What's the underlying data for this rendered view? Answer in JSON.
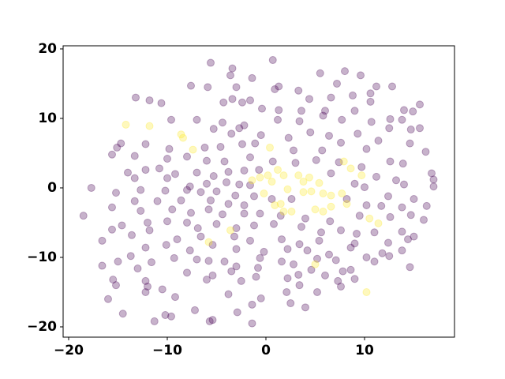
{
  "chart_data": {
    "type": "scatter",
    "xlim": [
      -20.56,
      19.12
    ],
    "ylim": [
      -21.48,
      20.45
    ],
    "xticks": [
      {
        "value": -20,
        "label": "−20"
      },
      {
        "value": -10,
        "label": "−10"
      },
      0,
      10
    ],
    "yticks": [
      {
        "value": -20,
        "label": "−20"
      },
      {
        "value": -10,
        "label": "−10"
      },
      0,
      10,
      20
    ],
    "alpha": 0.3,
    "series": [
      {
        "color": "#440154",
        "x": [
          -5.6,
          -3.4,
          0.7,
          -1.4,
          -3.6,
          5.5,
          8.0,
          9.6,
          -7.6,
          -5.9,
          -3.0,
          1.3,
          0.9,
          3.3,
          7.2,
          11.2,
          12.8,
          10.6,
          -13.2,
          -11.8,
          -10.6,
          -3.4,
          -1.6,
          4.4,
          6.6,
          8.8,
          10.6,
          15.6,
          -4.3,
          -2.4,
          -0.4,
          1.3,
          3.6,
          6.0,
          9.0,
          14.0,
          14.9,
          -9.6,
          -7.0,
          -4.4,
          -2.2,
          1.2,
          3.4,
          5.8,
          7.7,
          10.7,
          12.6,
          13.8,
          -2.7,
          -5.3,
          -3.5,
          -0.5,
          2.3,
          4.5,
          6.4,
          9.3,
          12.5,
          14.7,
          15.6,
          -14.7,
          -15.1,
          -12.2,
          -9.8,
          -6.2,
          -4.6,
          -2.4,
          -1.1,
          2.8,
          5.7,
          7.6,
          10.2,
          11.4,
          14.6,
          16.2,
          -15.6,
          -13.3,
          -10.0,
          -8.0,
          -6.0,
          -4.2,
          -1.6,
          0.7,
          3.0,
          5.1,
          7.4,
          9.7,
          12.6,
          13.9,
          -14.0,
          -12.2,
          -10.8,
          -9.2,
          -7.0,
          -5.3,
          -3.8,
          -2.2,
          -0.7,
          6.6,
          11.2,
          13.2,
          16.8,
          -13.3,
          -10.0,
          -7.7,
          -6.0,
          -4.0,
          -2.7,
          -1.6,
          9.0,
          10.0,
          14.0,
          17.0,
          17.0,
          -17.7,
          -15.2,
          -12.7,
          -10.2,
          -8.0,
          -6.6,
          -5.0,
          -3.1,
          -1.2,
          0.6,
          8.2,
          12.4,
          15.0,
          -13.3,
          -11.0,
          -8.6,
          -5.6,
          -3.8,
          -2.2,
          2.6,
          10.2,
          11.7,
          13.8,
          16.3,
          -15.6,
          -12.7,
          -9.5,
          -7.6,
          -5.8,
          -4.4,
          -2.2,
          -0.6,
          1.5,
          4.0,
          6.5,
          9.5,
          12.6,
          14.7,
          16.0,
          -18.5,
          -14.6,
          -12.0,
          -10.0,
          -8.0,
          -6.9,
          -5.0,
          -3.0,
          -1.2,
          0.8,
          3.6,
          5.6,
          7.6,
          9.2,
          11.0,
          13.8,
          15.0,
          -15.6,
          -13.6,
          -11.8,
          -9.0,
          -6.6,
          -3.2,
          -1.6,
          1.6,
          3.4,
          5.4,
          9.0,
          12.4,
          14.4,
          -16.6,
          -12.2,
          -10.1,
          -7.7,
          -5.4,
          -3.0,
          -0.2,
          2.2,
          4.2,
          6.4,
          8.6,
          11.8,
          13.8,
          -13.7,
          -9.3,
          -7.0,
          -4.2,
          -0.6,
          1.6,
          5.2,
          7.1,
          10.2,
          12.5,
          -15.0,
          -11.6,
          -5.8,
          -3.0,
          -0.8,
          2.8,
          4.6,
          7.8,
          11.0,
          -16.6,
          -13.0,
          -8.0,
          -3.5,
          3.3,
          6.0,
          8.6,
          14.6,
          -15.5,
          -12.2,
          -6.0,
          -5.4,
          -1.0,
          2.2,
          7.3,
          9.0,
          -15.2,
          -12.0,
          -10.5,
          -2.5,
          3.4,
          7.6,
          -12.2,
          -9.2,
          2.1,
          5.2,
          -16.0,
          -3.8,
          -0.5,
          2.5,
          -1.4,
          -14.5,
          -11.3,
          -10.2,
          -9.6,
          -5.7,
          -5.4,
          -1.4,
          -2.9,
          4.0,
          -7.2
        ],
        "y": [
          18.0,
          17.2,
          18.4,
          15.8,
          16.2,
          16.5,
          16.8,
          16.2,
          14.7,
          14.5,
          14.5,
          14.6,
          14.2,
          14.0,
          15.0,
          14.6,
          14.6,
          13.6,
          13.0,
          12.6,
          12.2,
          12.8,
          12.6,
          12.8,
          13.0,
          13.3,
          12.4,
          12.0,
          12.3,
          12.3,
          11.4,
          11.2,
          11.1,
          11.1,
          11.1,
          11.2,
          11.0,
          9.8,
          9.8,
          9.4,
          9.0,
          9.8,
          9.6,
          10.4,
          9.8,
          9.5,
          9.9,
          9.8,
          8.6,
          8.5,
          7.8,
          7.6,
          7.2,
          8.0,
          7.5,
          7.8,
          8.6,
          8.4,
          8.6,
          6.4,
          5.8,
          6.3,
          5.6,
          5.8,
          5.9,
          6.3,
          6.4,
          5.4,
          5.4,
          6.5,
          5.6,
          6.8,
          6.4,
          5.2,
          4.8,
          4.6,
          4.2,
          4.5,
          3.9,
          3.8,
          4.4,
          3.8,
          3.6,
          4.0,
          3.7,
          3.0,
          3.8,
          3.5,
          2.2,
          2.6,
          2.8,
          2.0,
          2.2,
          1.7,
          2.3,
          2.5,
          2.6,
          2.1,
          1.6,
          1.1,
          2.1,
          1.4,
          1.4,
          0.2,
          0.6,
          0.8,
          0.5,
          0.4,
          0.6,
          0.1,
          0.5,
          1.2,
          0.2,
          0.0,
          -0.7,
          -0.3,
          -0.4,
          -0.3,
          -0.6,
          -0.5,
          -1.1,
          -1.2,
          -1.6,
          -1.6,
          -1.2,
          -1.6,
          -1.9,
          -1.9,
          -1.8,
          -1.8,
          -2.3,
          -2.5,
          -1.6,
          -2.5,
          -2.6,
          -2.8,
          -2.6,
          -2.8,
          -3.3,
          -3.1,
          -3.6,
          -3.1,
          -3.8,
          -3.7,
          -3.7,
          -4.0,
          -4.4,
          -4.8,
          -4.0,
          -4.2,
          -3.9,
          -4.6,
          -4.0,
          -5.4,
          -5.0,
          -4.8,
          -5.0,
          -5.8,
          -5.2,
          -5.8,
          -5.4,
          -5.2,
          -5.6,
          -6.4,
          -6.1,
          -6.6,
          -6.4,
          -6.3,
          -7.0,
          -6.0,
          -6.8,
          -6.1,
          -7.4,
          -7.0,
          -7.0,
          -7.6,
          -7.4,
          -8.1,
          -7.6,
          -8.0,
          -7.9,
          -7.4,
          -7.6,
          -8.6,
          -8.2,
          -9.0,
          -8.2,
          -8.8,
          -9.2,
          -8.8,
          -9.0,
          -9.6,
          -8.6,
          -9.4,
          -9.0,
          -9.8,
          -10.1,
          -10.3,
          -10.6,
          -10.1,
          -10.6,
          -10.2,
          -10.4,
          -10.0,
          -9.8,
          -10.6,
          -10.7,
          -10.5,
          -11.3,
          -11.5,
          -11.0,
          -11.8,
          -12.0,
          -10.6,
          -11.2,
          -11.6,
          -12.2,
          -12.0,
          -12.5,
          -12.6,
          -11.8,
          -11.4,
          -13.2,
          -13.4,
          -13.2,
          -12.6,
          -12.8,
          -13.0,
          -13.4,
          -13.1,
          -14.0,
          -14.2,
          -14.6,
          -13.4,
          -14.0,
          -14.2,
          -15.0,
          -15.7,
          -15.0,
          -15.0,
          -16.0,
          -15.3,
          -15.9,
          -16.6,
          -16.8,
          -18.1,
          -19.2,
          -18.3,
          -18.5,
          -19.2,
          -19.0,
          -19.5,
          -17.9,
          -17.2,
          -17.6
        ]
      },
      {
        "color": "#fde725",
        "x": [
          -14.2,
          -11.8,
          -8.6,
          -8.4,
          -7.4,
          0.4,
          -5.8,
          -3.6,
          -1.4,
          -0.6,
          0.2,
          0.6,
          1.2,
          1.8,
          2.2,
          1.5,
          2.6,
          3.3,
          3.8,
          3.8,
          4.4,
          5.4,
          5.8,
          6.6,
          7.7,
          7.9,
          8.6,
          9.7,
          5.0,
          5.8,
          6.6,
          8.2,
          10.5,
          11.4,
          10.2,
          5.0,
          -0.2,
          0.9,
          1.8,
          4.6
        ],
        "y": [
          9.1,
          8.9,
          7.7,
          7.2,
          5.5,
          5.8,
          -7.8,
          -6.1,
          1.1,
          1.5,
          1.8,
          0.9,
          2.6,
          1.8,
          -0.2,
          -2.3,
          -3.4,
          1.8,
          0.9,
          -0.6,
          1.5,
          0.7,
          -0.8,
          -1.1,
          -0.8,
          3.8,
          2.8,
          1.8,
          -3.1,
          -3.4,
          -2.7,
          -2.3,
          -4.4,
          -5.1,
          -15.0,
          -11.0,
          -0.8,
          -2.5,
          -3.4,
          -0.5
        ]
      }
    ]
  }
}
